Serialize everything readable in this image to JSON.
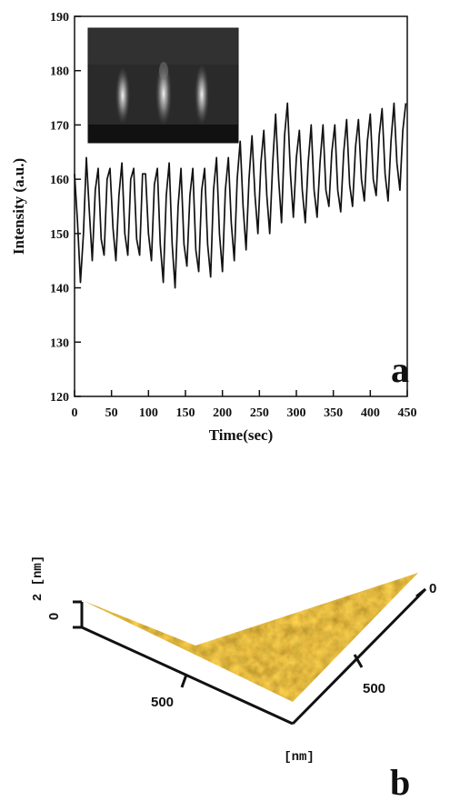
{
  "chart_data": [
    {
      "type": "line",
      "panel": "a",
      "xlabel": "Time(sec)",
      "ylabel": "Intensity (a.u.)",
      "xlim": [
        0,
        450
      ],
      "ylim": [
        120,
        190
      ],
      "xticks": [
        0,
        50,
        100,
        150,
        200,
        250,
        300,
        350,
        400,
        450
      ],
      "yticks": [
        120,
        130,
        140,
        150,
        160,
        170,
        180,
        190
      ],
      "grid": false,
      "legend": "none",
      "inset": "RHEED diffraction pattern (three vertical streaks)",
      "series": [
        {
          "color": "#111111",
          "x": [
            0,
            4,
            8,
            12,
            16,
            20,
            24,
            28,
            32,
            36,
            40,
            44,
            48,
            52,
            56,
            60,
            64,
            68,
            72,
            76,
            80,
            84,
            88,
            92,
            96,
            100,
            104,
            108,
            112,
            116,
            120,
            124,
            128,
            132,
            136,
            140,
            144,
            148,
            152,
            156,
            160,
            164,
            168,
            172,
            176,
            180,
            184,
            188,
            192,
            196,
            200,
            204,
            208,
            212,
            216,
            220,
            224,
            228,
            232,
            236,
            240,
            244,
            248,
            252,
            256,
            260,
            264,
            268,
            272,
            276,
            280,
            284,
            288,
            292,
            296,
            300,
            304,
            308,
            312,
            316,
            320,
            324,
            328,
            332,
            336,
            340,
            344,
            348,
            352,
            356,
            360,
            364,
            368,
            372,
            376,
            380,
            384,
            388,
            392,
            396,
            400,
            404,
            408,
            412,
            416,
            420,
            424,
            428,
            432,
            436,
            440,
            444,
            448
          ],
          "values": [
            161,
            152,
            141,
            150,
            164,
            154,
            145,
            158,
            162,
            149,
            146,
            160,
            162,
            151,
            145,
            157,
            163,
            150,
            146,
            160,
            162,
            149,
            146,
            161,
            161,
            150,
            145,
            159,
            162,
            148,
            141,
            157,
            163,
            148,
            140,
            155,
            162,
            148,
            144,
            157,
            162,
            147,
            143,
            158,
            162,
            148,
            142,
            158,
            164,
            150,
            143,
            158,
            164,
            152,
            145,
            160,
            167,
            155,
            147,
            160,
            168,
            157,
            150,
            163,
            169,
            157,
            150,
            163,
            172,
            160,
            152,
            168,
            174,
            161,
            153,
            164,
            169,
            158,
            152,
            163,
            170,
            158,
            153,
            163,
            170,
            158,
            155,
            165,
            170,
            158,
            154,
            165,
            171,
            159,
            155,
            166,
            171,
            160,
            156,
            167,
            172,
            160,
            157,
            168,
            173,
            161,
            156,
            167,
            174,
            163,
            158,
            169,
            174
          ]
        }
      ]
    },
    {
      "type": "surface",
      "panel": "b",
      "z_axis_label": "2 [nm]",
      "z_ticks": [
        "0"
      ],
      "right_axis_ticks": [
        "0",
        "500"
      ],
      "front_axis_ticks": [
        "500"
      ],
      "unit_label": "[nm]"
    }
  ]
}
